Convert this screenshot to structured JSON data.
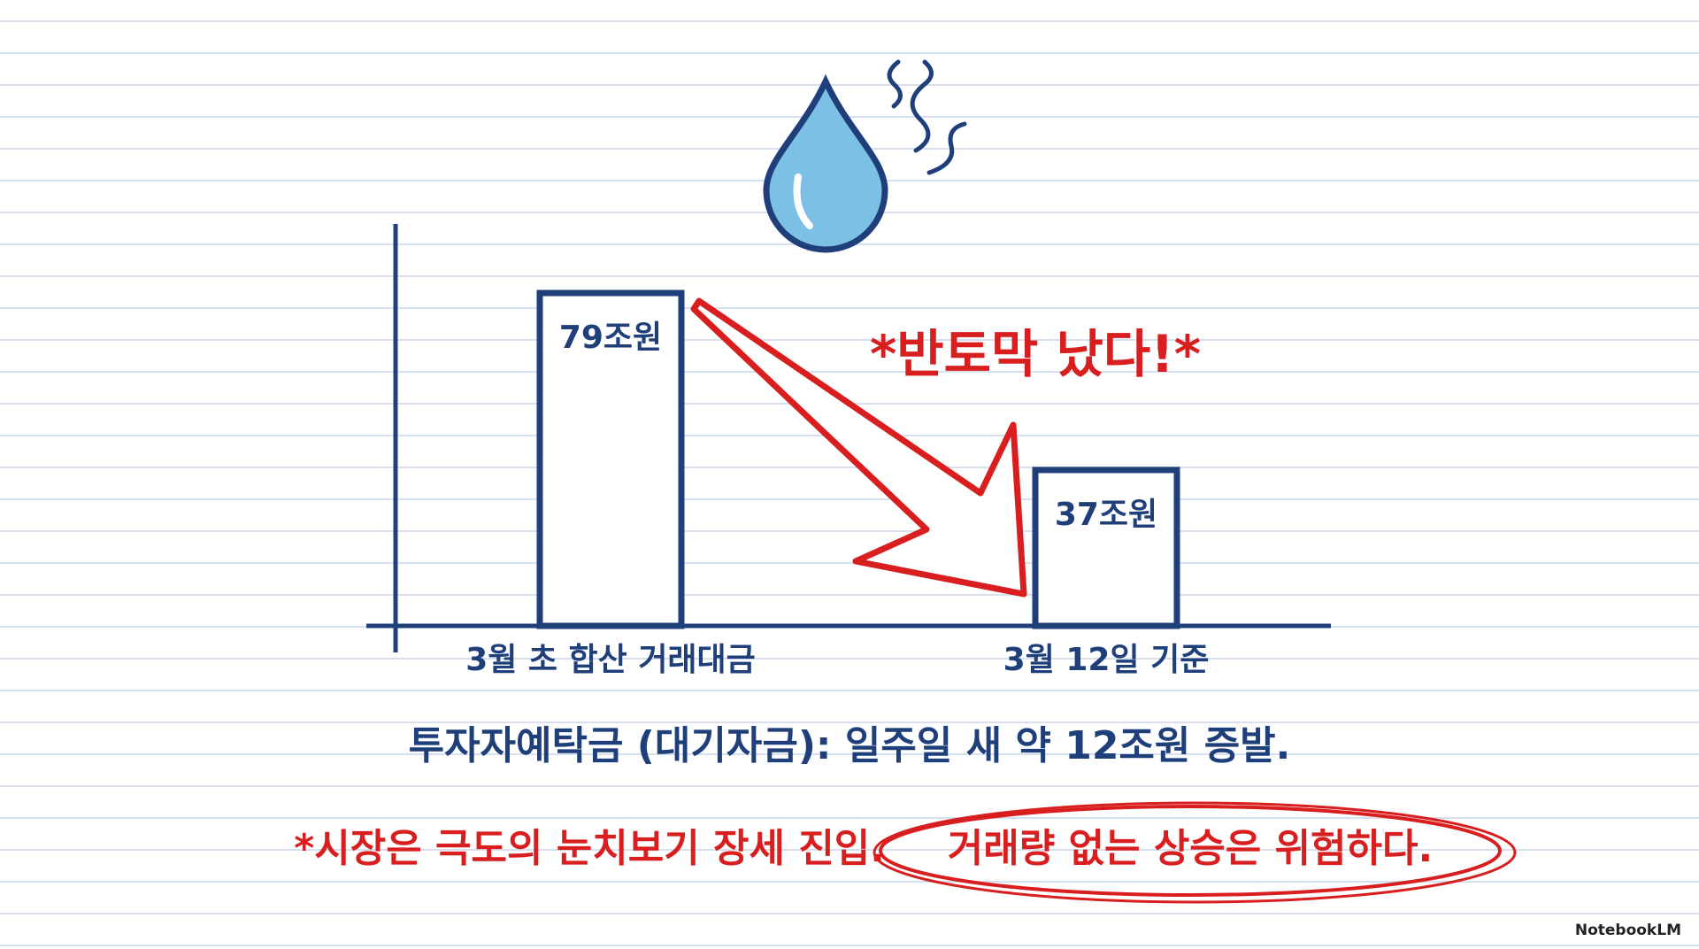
{
  "chart_data": {
    "type": "bar",
    "title": "*반토막 났다!*",
    "categories": [
      "3월 초 합산 거래대금",
      "3월 12일 기준"
    ],
    "values": [
      79,
      37
    ],
    "value_labels": [
      "79조원",
      "37조원"
    ],
    "color": "#1f3f7a"
  },
  "subtitle": "투자자예탁금 (대기자금): 일주일 새 약 12조원 증발.",
  "annotations": [
    "*시장은 극도의 눈치보기 장세 진입.",
    "거래량 없는 상승은 위험하다."
  ],
  "watermark": "NotebookLM"
}
